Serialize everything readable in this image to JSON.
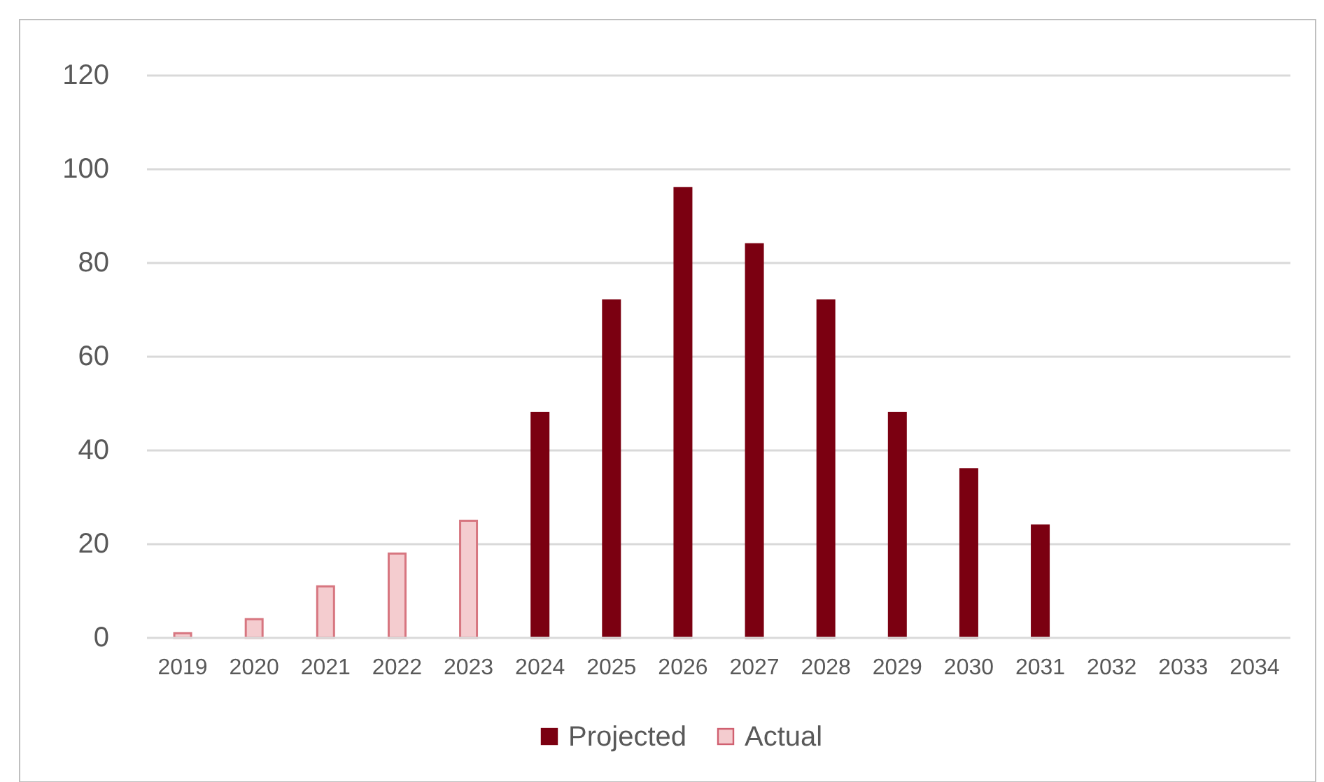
{
  "chart_data": {
    "type": "bar",
    "categories": [
      "2019",
      "2020",
      "2021",
      "2022",
      "2023",
      "2024",
      "2025",
      "2026",
      "2027",
      "2028",
      "2029",
      "2030",
      "2031",
      "2032",
      "2033",
      "2034"
    ],
    "series": [
      {
        "name": "Projected",
        "color": "#7b0011",
        "values": [
          null,
          null,
          null,
          null,
          null,
          48,
          72,
          96,
          84,
          72,
          48,
          36,
          24,
          null,
          null,
          null
        ]
      },
      {
        "name": "Actual",
        "color": "#f4cccf",
        "values": [
          1,
          4,
          11,
          18,
          25,
          null,
          null,
          null,
          null,
          null,
          null,
          null,
          null,
          null,
          null,
          null
        ]
      }
    ],
    "ylim": [
      0,
      120
    ],
    "yticks": [
      0,
      20,
      40,
      60,
      80,
      100,
      120
    ],
    "grid": "y",
    "legend": "bottom"
  }
}
